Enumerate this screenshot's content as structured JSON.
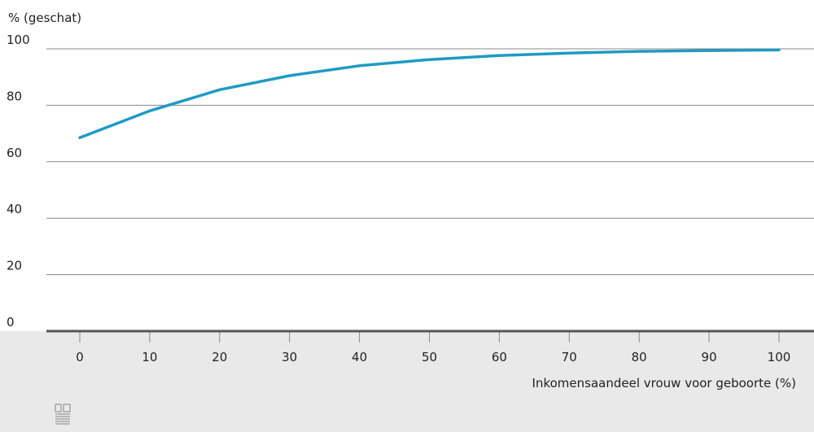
{
  "chart_data": {
    "type": "line",
    "title": "",
    "ylabel": "% (geschat)",
    "xlabel": "Inkomensaandeel vrouw voor geboorte (%)",
    "x": [
      0,
      10,
      20,
      30,
      40,
      50,
      60,
      70,
      80,
      90,
      100
    ],
    "series": [
      {
        "values": [
          68.5,
          78,
          85.5,
          90.5,
          94,
          96.2,
          97.6,
          98.5,
          99.1,
          99.4,
          99.6
        ]
      }
    ],
    "xticks": [
      "0",
      "10",
      "20",
      "30",
      "40",
      "50",
      "60",
      "70",
      "80",
      "90",
      "100"
    ],
    "yticks": [
      "0",
      "20",
      "40",
      "60",
      "80",
      "100"
    ],
    "xlim": [
      0,
      100
    ],
    "ylim": [
      0,
      100
    ],
    "grid": "horizontal",
    "legend": "none",
    "colors": {
      "line": "#1f9ac4",
      "grid": "#888888",
      "baseline": "#555555",
      "footer_bg": "#e9e9e9",
      "text": "#222222",
      "logo": "#a6a6a6"
    }
  },
  "logo": {
    "icon": "cbs-logo-icon"
  }
}
